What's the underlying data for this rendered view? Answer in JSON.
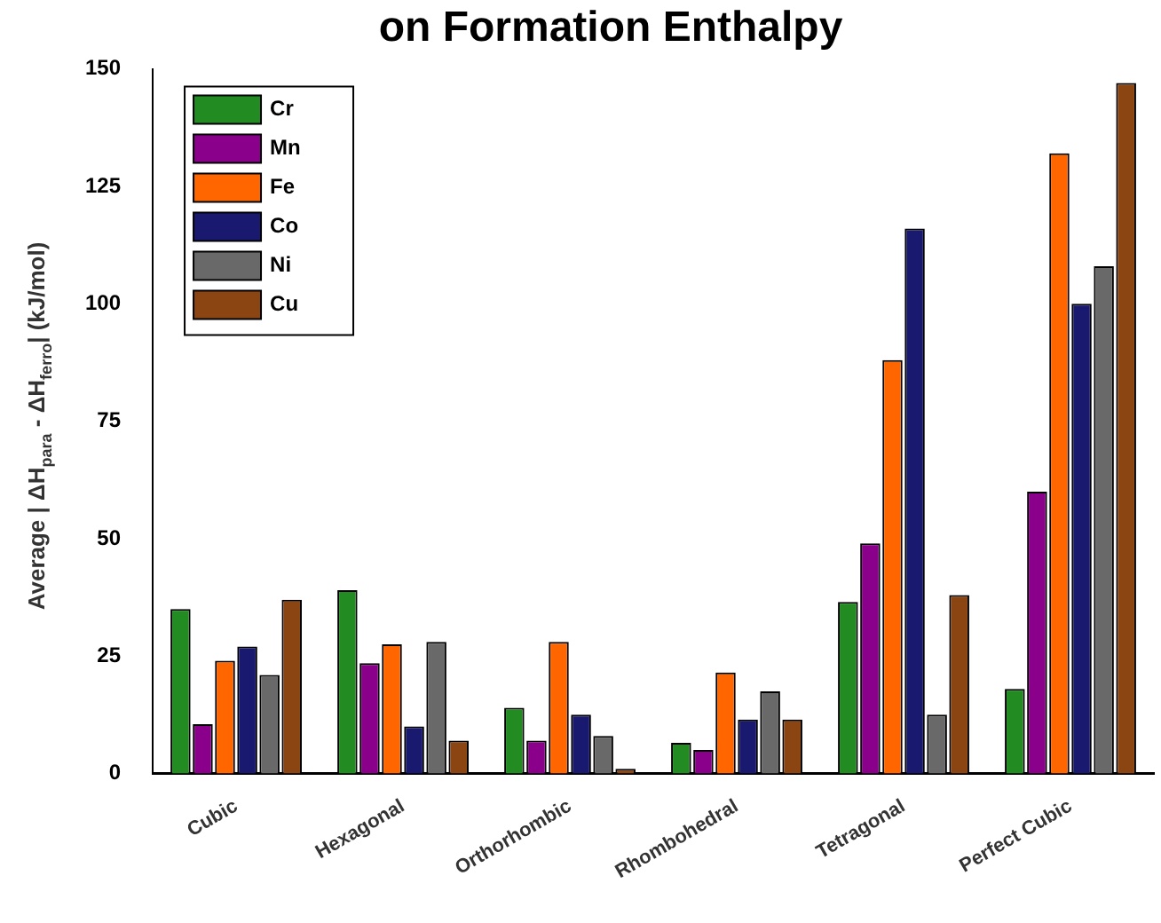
{
  "chart_data": {
    "type": "bar",
    "title": "on Formation Enthalpy",
    "ylabel": "Average |  ΔH$_{para}$ - ΔH$_{ferro}$| (kJ/mol)",
    "categories": [
      "Cubic",
      "Hexagonal",
      "Orthorhombic",
      "Rhombohedral",
      "Tetragonal",
      "Perfect Cubic"
    ],
    "series": [
      {
        "name": "Cr",
        "color": "#228b22",
        "values": [
          35,
          39,
          14,
          6.5,
          36.5,
          18
        ]
      },
      {
        "name": "Mn",
        "color": "#8b008b",
        "values": [
          10.5,
          23.5,
          7,
          5,
          49,
          60
        ]
      },
      {
        "name": "Fe",
        "color": "#ff6600",
        "values": [
          24,
          27.5,
          28,
          21.5,
          88,
          132
        ]
      },
      {
        "name": "Co",
        "color": "#191970",
        "values": [
          27,
          10,
          12.5,
          11.5,
          116,
          100
        ]
      },
      {
        "name": "Ni",
        "color": "#696969",
        "values": [
          21,
          28,
          8,
          17.5,
          12.5,
          108
        ]
      },
      {
        "name": "Cu",
        "color": "#8b4513",
        "values": [
          37,
          7,
          1,
          11.5,
          38,
          147
        ]
      }
    ],
    "ylim": [
      0,
      150
    ],
    "yticks": [
      0,
      25,
      50,
      75,
      100,
      125,
      150
    ],
    "grid": false,
    "legend": "top left"
  }
}
